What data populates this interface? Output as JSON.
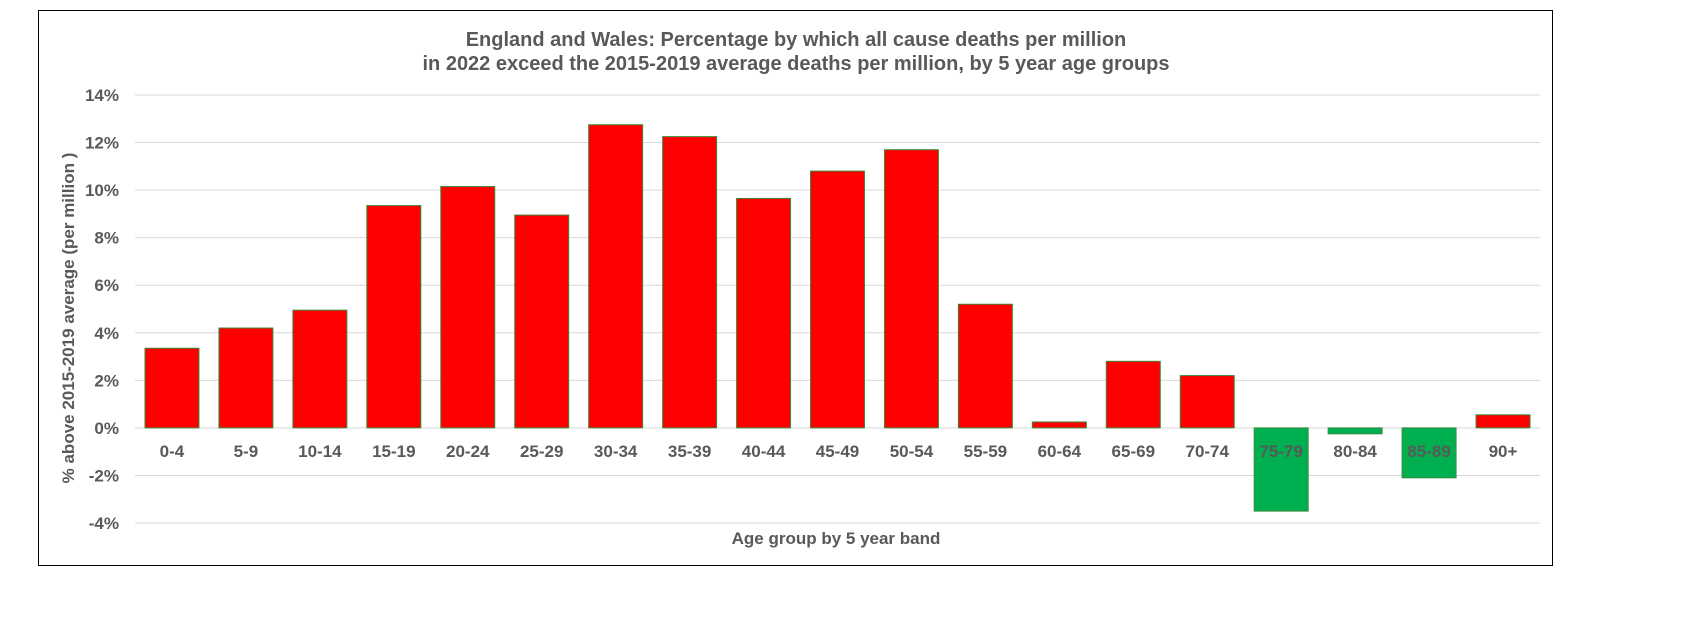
{
  "chart_data": {
    "type": "bar",
    "title": "England and Wales: Percentage by which all cause deaths per million",
    "subtitle": "in 2022 exceed the 2015-2019 average deaths per million, by 5 year age groups",
    "xlabel": "Age group by 5 year band",
    "ylabel": "% above 2015-2019 average (per million )",
    "categories": [
      "0-4",
      "5-9",
      "10-14",
      "15-19",
      "20-24",
      "25-29",
      "30-34",
      "35-39",
      "40-44",
      "45-49",
      "50-54",
      "55-59",
      "60-64",
      "65-69",
      "70-74",
      "75-79",
      "80-84",
      "85-89",
      "90+"
    ],
    "values": [
      3.35,
      4.2,
      4.95,
      9.35,
      10.15,
      8.95,
      12.75,
      12.25,
      9.65,
      10.8,
      11.7,
      5.2,
      0.25,
      2.8,
      2.2,
      -3.5,
      -0.25,
      -2.1,
      0.55
    ],
    "ylim": [
      -4,
      14
    ],
    "yticks": [
      -4,
      -2,
      0,
      2,
      4,
      6,
      8,
      10,
      12,
      14
    ],
    "ytick_suffix": "%",
    "grid": true,
    "legend": false,
    "colors": {
      "positive": "#ff0000",
      "negative": "#00b050",
      "bar_edge": "#3a8a3a",
      "grid": "#d9d9d9",
      "text": "#595959"
    }
  }
}
